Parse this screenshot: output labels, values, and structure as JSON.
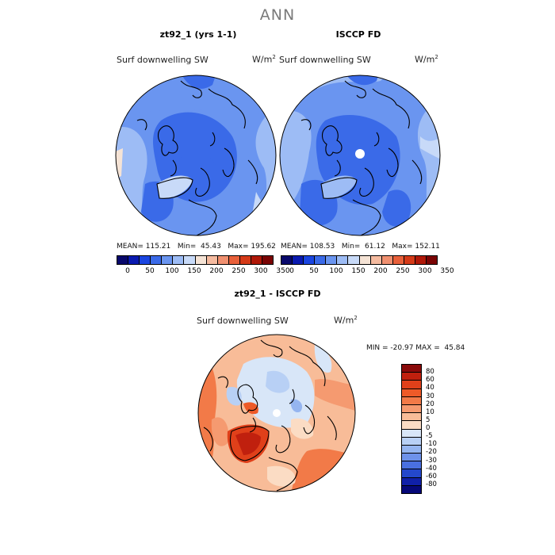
{
  "figure": {
    "title": "ANN"
  },
  "panels": [
    {
      "title": "zt92_1 (yrs 1-1)",
      "field": "Surf downwelling SW",
      "units_base": "W/m",
      "units_exp": "2",
      "stats": "MEAN= 115.21   Min=  45.43   Max= 195.62"
    },
    {
      "title": "ISCCP FD",
      "field": "Surf downwelling SW",
      "units_base": "W/m",
      "units_exp": "2",
      "stats": "MEAN= 108.53   Min=  61.12   Max= 152.11"
    }
  ],
  "abs_colorbar": {
    "colors": [
      "#08086b",
      "#0a1ab0",
      "#1a45e0",
      "#3a6ae8",
      "#6a95f0",
      "#9dbcf5",
      "#c8daf8",
      "#f5e3d5",
      "#f5bba0",
      "#f09070",
      "#e8603a",
      "#d53a18",
      "#b01808",
      "#7a0404"
    ],
    "tick_labels": [
      "0",
      "50",
      "100",
      "150",
      "200",
      "250",
      "300",
      "350"
    ]
  },
  "difference": {
    "title": "zt92_1 - ISCCP FD",
    "field": "Surf downwelling SW",
    "units_base": "W/m",
    "units_exp": "2",
    "stats": "MIN = -20.97 MAX =  45.84"
  },
  "diff_colorbar": {
    "colors": [
      "#8a0a0a",
      "#c0200e",
      "#e0401a",
      "#ee5a28",
      "#f27a48",
      "#f59a70",
      "#f8bc98",
      "#fbdcc4",
      "#d8e6f8",
      "#b8d0f5",
      "#95b5f0",
      "#6e92ea",
      "#4a70e0",
      "#2448cc",
      "#1020a8",
      "#060878"
    ],
    "labels": [
      "80",
      "60",
      "40",
      "30",
      "20",
      "10",
      "5",
      "0",
      "-5",
      "-10",
      "-20",
      "-30",
      "-40",
      "-60",
      "-80"
    ]
  }
}
